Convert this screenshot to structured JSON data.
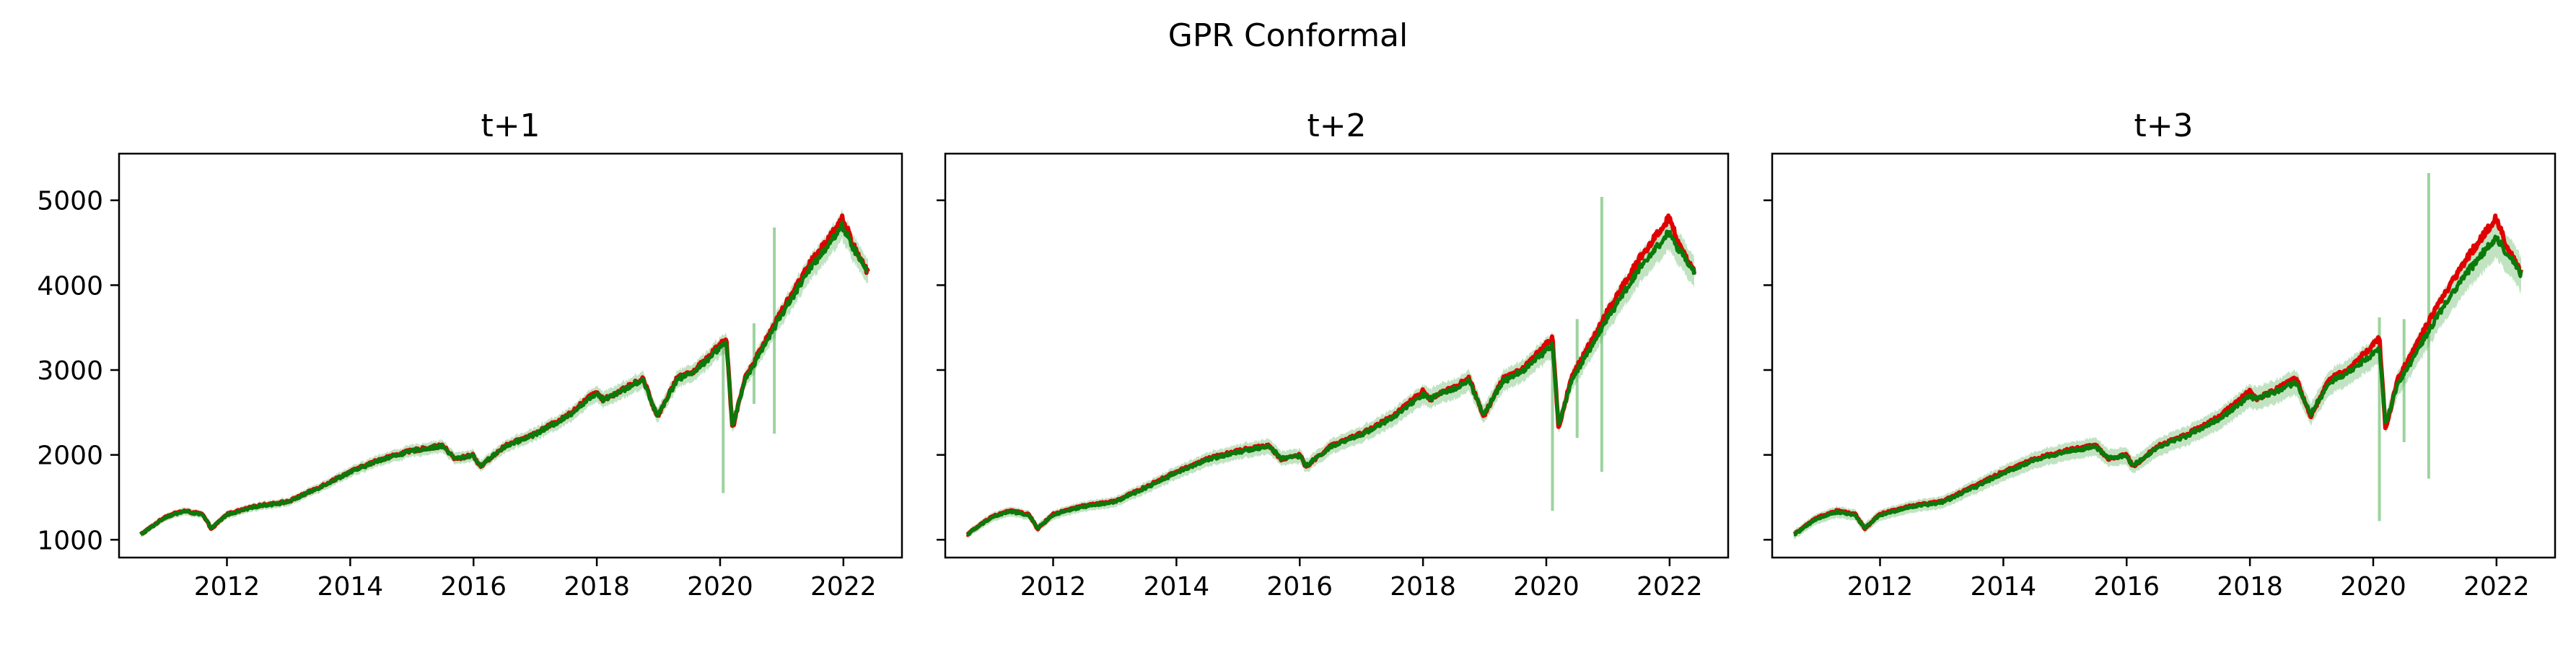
{
  "figure": {
    "title": "GPR Conformal"
  },
  "colors": {
    "actual": "#e00000",
    "prediction": "#0a7a0a",
    "interval": "#4caf50"
  },
  "chart_data": [
    {
      "type": "line",
      "title": "t+1",
      "xlabel": "",
      "ylabel": "",
      "x_ticks": [
        "2012",
        "2014",
        "2016",
        "2018",
        "2020",
        "2022"
      ],
      "y_ticks": [
        "1000",
        "2000",
        "3000",
        "4000",
        "5000"
      ],
      "xlim": [
        2010.25,
        2022.95
      ],
      "ylim": [
        790,
        5550
      ],
      "grid": false,
      "legend": "none",
      "series": [
        {
          "role": "actual",
          "x": [
            2010.6,
            2011.0,
            2011.3,
            2011.6,
            2011.75,
            2012.0,
            2012.5,
            2013.0,
            2013.5,
            2014.0,
            2014.5,
            2015.0,
            2015.5,
            2015.7,
            2016.0,
            2016.1,
            2016.5,
            2017.0,
            2017.5,
            2018.0,
            2018.1,
            2018.5,
            2018.75,
            2018.98,
            2019.3,
            2019.6,
            2020.1,
            2020.2,
            2020.4,
            2020.7,
            2021.0,
            2021.5,
            2021.99,
            2022.2,
            2022.4
          ],
          "y": [
            1060,
            1270,
            1340,
            1300,
            1130,
            1300,
            1400,
            1450,
            1620,
            1800,
            1950,
            2050,
            2110,
            1950,
            2000,
            1860,
            2100,
            2250,
            2450,
            2750,
            2650,
            2800,
            2900,
            2450,
            2900,
            3000,
            3380,
            2300,
            2900,
            3300,
            3700,
            4300,
            4790,
            4400,
            4150
          ]
        },
        {
          "role": "prediction",
          "x": [
            2010.6,
            2011.0,
            2011.3,
            2011.6,
            2011.75,
            2012.0,
            2012.5,
            2013.0,
            2013.5,
            2014.0,
            2014.5,
            2015.0,
            2015.5,
            2015.7,
            2016.0,
            2016.1,
            2016.5,
            2017.0,
            2017.5,
            2018.0,
            2018.1,
            2018.5,
            2018.75,
            2018.98,
            2019.3,
            2019.6,
            2020.1,
            2020.2,
            2020.4,
            2020.7,
            2021.0,
            2021.5,
            2021.99,
            2022.2,
            2022.4
          ],
          "y": [
            1060,
            1265,
            1335,
            1295,
            1135,
            1295,
            1395,
            1445,
            1615,
            1795,
            1945,
            2045,
            2105,
            1955,
            1995,
            1865,
            2095,
            2245,
            2440,
            2730,
            2655,
            2790,
            2885,
            2460,
            2885,
            2990,
            3340,
            2320,
            2880,
            3270,
            3660,
            4240,
            4700,
            4380,
            4150
          ]
        }
      ],
      "interval_spikes": [
        {
          "x": 2020.05,
          "lower": 1550,
          "upper": 3350
        },
        {
          "x": 2020.55,
          "lower": 2600,
          "upper": 3550
        },
        {
          "x": 2020.88,
          "lower": 2250,
          "upper": 4680
        }
      ]
    },
    {
      "type": "line",
      "title": "t+2",
      "xlabel": "",
      "ylabel": "",
      "x_ticks": [
        "2012",
        "2014",
        "2016",
        "2018",
        "2020",
        "2022"
      ],
      "y_ticks": [],
      "xlim": [
        2010.25,
        2022.95
      ],
      "ylim": [
        790,
        5550
      ],
      "grid": false,
      "legend": "none",
      "series": [
        {
          "role": "actual",
          "x": [
            2010.6,
            2011.0,
            2011.3,
            2011.6,
            2011.75,
            2012.0,
            2012.5,
            2013.0,
            2013.5,
            2014.0,
            2014.5,
            2015.0,
            2015.5,
            2015.7,
            2016.0,
            2016.1,
            2016.5,
            2017.0,
            2017.5,
            2018.0,
            2018.1,
            2018.5,
            2018.75,
            2018.98,
            2019.3,
            2019.6,
            2020.1,
            2020.2,
            2020.4,
            2020.7,
            2021.0,
            2021.5,
            2021.99,
            2022.2,
            2022.4
          ],
          "y": [
            1060,
            1270,
            1340,
            1300,
            1130,
            1300,
            1400,
            1450,
            1620,
            1800,
            1950,
            2050,
            2110,
            1950,
            2000,
            1860,
            2100,
            2250,
            2450,
            2750,
            2650,
            2800,
            2900,
            2450,
            2900,
            3000,
            3380,
            2300,
            2900,
            3300,
            3700,
            4300,
            4790,
            4400,
            4150
          ]
        },
        {
          "role": "prediction",
          "x": [
            2010.6,
            2011.0,
            2011.3,
            2011.6,
            2011.75,
            2012.0,
            2012.5,
            2013.0,
            2013.5,
            2014.0,
            2014.5,
            2015.0,
            2015.5,
            2015.7,
            2016.0,
            2016.1,
            2016.5,
            2017.0,
            2017.5,
            2018.0,
            2018.1,
            2018.5,
            2018.75,
            2018.98,
            2019.3,
            2019.6,
            2020.1,
            2020.2,
            2020.4,
            2020.7,
            2021.0,
            2021.5,
            2021.99,
            2022.2,
            2022.4
          ],
          "y": [
            1058,
            1262,
            1332,
            1292,
            1138,
            1292,
            1392,
            1442,
            1610,
            1790,
            1940,
            2040,
            2100,
            1960,
            1990,
            1870,
            2090,
            2240,
            2430,
            2710,
            2660,
            2780,
            2870,
            2470,
            2870,
            2980,
            3300,
            2340,
            2860,
            3240,
            3620,
            4190,
            4620,
            4360,
            4140
          ]
        }
      ],
      "interval_spikes": [
        {
          "x": 2020.1,
          "lower": 1340,
          "upper": 3300
        },
        {
          "x": 2020.5,
          "lower": 2200,
          "upper": 3600
        },
        {
          "x": 2020.9,
          "lower": 1800,
          "upper": 5040
        }
      ]
    },
    {
      "type": "line",
      "title": "t+3",
      "xlabel": "",
      "ylabel": "",
      "x_ticks": [
        "2012",
        "2014",
        "2016",
        "2018",
        "2020",
        "2022"
      ],
      "y_ticks": [],
      "xlim": [
        2010.25,
        2022.95
      ],
      "ylim": [
        790,
        5550
      ],
      "grid": false,
      "legend": "none",
      "series": [
        {
          "role": "actual",
          "x": [
            2010.6,
            2011.0,
            2011.3,
            2011.6,
            2011.75,
            2012.0,
            2012.5,
            2013.0,
            2013.5,
            2014.0,
            2014.5,
            2015.0,
            2015.5,
            2015.7,
            2016.0,
            2016.1,
            2016.5,
            2017.0,
            2017.5,
            2018.0,
            2018.1,
            2018.5,
            2018.75,
            2018.98,
            2019.3,
            2019.6,
            2020.1,
            2020.2,
            2020.4,
            2020.7,
            2021.0,
            2021.5,
            2021.99,
            2022.2,
            2022.4
          ],
          "y": [
            1060,
            1270,
            1340,
            1300,
            1130,
            1300,
            1400,
            1450,
            1620,
            1800,
            1950,
            2050,
            2110,
            1950,
            2000,
            1860,
            2100,
            2250,
            2450,
            2750,
            2650,
            2800,
            2900,
            2450,
            2900,
            3000,
            3380,
            2300,
            2900,
            3300,
            3700,
            4300,
            4790,
            4400,
            4150
          ]
        },
        {
          "role": "prediction",
          "x": [
            2010.6,
            2011.0,
            2011.3,
            2011.6,
            2011.75,
            2012.0,
            2012.5,
            2013.0,
            2013.5,
            2014.0,
            2014.5,
            2015.0,
            2015.5,
            2015.7,
            2016.0,
            2016.1,
            2016.5,
            2017.0,
            2017.5,
            2018.0,
            2018.1,
            2018.5,
            2018.75,
            2018.98,
            2019.3,
            2019.6,
            2020.1,
            2020.2,
            2020.4,
            2020.7,
            2021.0,
            2021.5,
            2021.99,
            2022.2,
            2022.4
          ],
          "y": [
            1056,
            1258,
            1328,
            1288,
            1140,
            1288,
            1388,
            1438,
            1605,
            1785,
            1935,
            2035,
            2095,
            1962,
            1985,
            1872,
            2085,
            2235,
            2420,
            2690,
            2660,
            2770,
            2855,
            2480,
            2855,
            2970,
            3260,
            2360,
            2840,
            3210,
            3580,
            4140,
            4560,
            4340,
            4130
          ]
        }
      ],
      "interval_spikes": [
        {
          "x": 2020.1,
          "lower": 1220,
          "upper": 3620
        },
        {
          "x": 2020.5,
          "lower": 2150,
          "upper": 3600
        },
        {
          "x": 2020.9,
          "lower": 1720,
          "upper": 5320
        }
      ]
    }
  ]
}
